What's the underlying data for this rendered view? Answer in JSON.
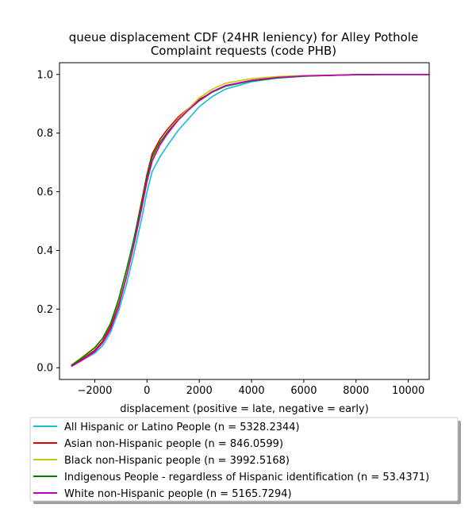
{
  "chart_data": {
    "type": "line",
    "title": "queue displacement CDF (24HR leniency) for Alley Pothole",
    "title_line2": "Complaint  requests (code PHB)",
    "xlabel": "displacement (positive = late, negative = early)",
    "ylabel": "",
    "xlim": [
      -3350,
      10800
    ],
    "ylim": [
      -0.04,
      1.04
    ],
    "xticks": [
      -2000,
      0,
      2000,
      4000,
      6000,
      8000,
      10000
    ],
    "xtick_labels": [
      "−2000",
      "0",
      "2000",
      "4000",
      "6000",
      "8000",
      "10000"
    ],
    "yticks": [
      0.0,
      0.2,
      0.4,
      0.6,
      0.8,
      1.0
    ],
    "ytick_labels": [
      "0.0",
      "0.2",
      "0.4",
      "0.6",
      "0.8",
      "1.0"
    ],
    "grid": false,
    "legend_position": "below",
    "series": [
      {
        "name": "All Hispanic or Latino People (n = 5328.2344)",
        "color": "#17becf",
        "x": [
          -2900,
          -2500,
          -2000,
          -1700,
          -1400,
          -1100,
          -800,
          -500,
          -200,
          0,
          200,
          500,
          800,
          1200,
          1600,
          2000,
          2500,
          3000,
          4000,
          5000,
          6000,
          7000,
          8000,
          9000,
          10000,
          10800
        ],
        "y": [
          0.005,
          0.025,
          0.05,
          0.075,
          0.12,
          0.19,
          0.28,
          0.39,
          0.51,
          0.6,
          0.67,
          0.72,
          0.76,
          0.81,
          0.85,
          0.89,
          0.925,
          0.95,
          0.975,
          0.988,
          0.994,
          0.997,
          0.999,
          1.0,
          1.0,
          1.0
        ]
      },
      {
        "name": "Asian non-Hispanic people (n = 846.0599)",
        "color": "#e00000",
        "x": [
          -2900,
          -2500,
          -2000,
          -1700,
          -1400,
          -1100,
          -800,
          -500,
          -200,
          0,
          200,
          500,
          800,
          1200,
          1600,
          2000,
          2500,
          3000,
          4000,
          5000,
          6000,
          7000,
          8000,
          9000,
          10000,
          10800
        ],
        "y": [
          0.005,
          0.028,
          0.06,
          0.09,
          0.14,
          0.22,
          0.32,
          0.44,
          0.57,
          0.66,
          0.73,
          0.78,
          0.815,
          0.855,
          0.885,
          0.915,
          0.94,
          0.96,
          0.98,
          0.99,
          0.995,
          0.997,
          0.999,
          1.0,
          1.0,
          1.0
        ]
      },
      {
        "name": "Black non-Hispanic people (n = 3992.5168)",
        "color": "#c8c800",
        "x": [
          -2900,
          -2500,
          -2000,
          -1700,
          -1400,
          -1100,
          -800,
          -500,
          -200,
          0,
          200,
          500,
          800,
          1200,
          1600,
          2000,
          2500,
          3000,
          4000,
          5000,
          6000,
          7000,
          8000,
          9000,
          10000,
          10800
        ],
        "y": [
          0.008,
          0.035,
          0.07,
          0.1,
          0.15,
          0.225,
          0.32,
          0.43,
          0.55,
          0.64,
          0.71,
          0.765,
          0.805,
          0.85,
          0.885,
          0.92,
          0.95,
          0.97,
          0.986,
          0.993,
          0.996,
          0.998,
          0.999,
          1.0,
          1.0,
          1.0
        ]
      },
      {
        "name": "Indigenous People - regardless of Hispanic identification (n = 53.4371)",
        "color": "#008000",
        "x": [
          -2900,
          -2500,
          -2000,
          -1700,
          -1400,
          -1100,
          -800,
          -500,
          -200,
          0,
          200,
          500,
          800,
          1200,
          1600,
          2000,
          2500,
          3000,
          4000,
          5000,
          6000,
          7000,
          8000,
          9000,
          10000,
          10800
        ],
        "y": [
          0.008,
          0.033,
          0.068,
          0.1,
          0.15,
          0.23,
          0.33,
          0.44,
          0.56,
          0.65,
          0.72,
          0.77,
          0.805,
          0.845,
          0.88,
          0.91,
          0.94,
          0.96,
          0.978,
          0.988,
          0.994,
          0.997,
          0.999,
          1.0,
          1.0,
          1.0
        ]
      },
      {
        "name": "White non-Hispanic people (n = 5165.7294)",
        "color": "#c000c0",
        "x": [
          -2900,
          -2500,
          -2000,
          -1700,
          -1400,
          -1100,
          -800,
          -500,
          -200,
          0,
          200,
          500,
          800,
          1200,
          1600,
          2000,
          2500,
          3000,
          4000,
          5000,
          6000,
          7000,
          8000,
          9000,
          10000,
          10800
        ],
        "y": [
          0.004,
          0.025,
          0.055,
          0.085,
          0.13,
          0.205,
          0.305,
          0.42,
          0.545,
          0.635,
          0.705,
          0.76,
          0.8,
          0.845,
          0.88,
          0.912,
          0.942,
          0.962,
          0.98,
          0.99,
          0.995,
          0.997,
          0.999,
          1.0,
          1.0,
          1.0
        ]
      }
    ]
  }
}
